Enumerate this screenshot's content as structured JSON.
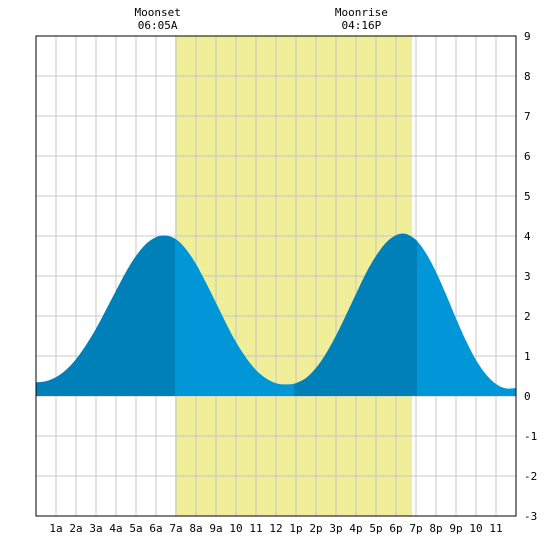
{
  "chart_data": {
    "type": "area",
    "title": "",
    "xlabel": "",
    "ylabel": "",
    "xlim": [
      0,
      24
    ],
    "ylim": [
      -3,
      9
    ],
    "grid": true,
    "x_ticks": [
      {
        "x": 1,
        "label": "1a"
      },
      {
        "x": 2,
        "label": "2a"
      },
      {
        "x": 3,
        "label": "3a"
      },
      {
        "x": 4,
        "label": "4a"
      },
      {
        "x": 5,
        "label": "5a"
      },
      {
        "x": 6,
        "label": "6a"
      },
      {
        "x": 7,
        "label": "7a"
      },
      {
        "x": 8,
        "label": "8a"
      },
      {
        "x": 9,
        "label": "9a"
      },
      {
        "x": 10,
        "label": "10"
      },
      {
        "x": 11,
        "label": "11"
      },
      {
        "x": 12,
        "label": "12"
      },
      {
        "x": 13,
        "label": "1p"
      },
      {
        "x": 14,
        "label": "2p"
      },
      {
        "x": 15,
        "label": "3p"
      },
      {
        "x": 16,
        "label": "4p"
      },
      {
        "x": 17,
        "label": "5p"
      },
      {
        "x": 18,
        "label": "6p"
      },
      {
        "x": 19,
        "label": "7p"
      },
      {
        "x": 20,
        "label": "8p"
      },
      {
        "x": 21,
        "label": "9p"
      },
      {
        "x": 22,
        "label": "10"
      },
      {
        "x": 23,
        "label": "11"
      }
    ],
    "y_ticks": [
      -3,
      -2,
      -1,
      0,
      1,
      2,
      3,
      4,
      5,
      6,
      7,
      8,
      9
    ],
    "series": [
      {
        "x": [
          0,
          0.5,
          1,
          1.5,
          2,
          2.5,
          3,
          3.5,
          4,
          4.5,
          5,
          5.5,
          6,
          6.5,
          7,
          7.5,
          8,
          8.5,
          9,
          9.5,
          10,
          10.5,
          11,
          11.5,
          12,
          12.5,
          13,
          13.5,
          14,
          14.5,
          15,
          15.5,
          16,
          16.5,
          17,
          17.5,
          18,
          18.5,
          19,
          19.5,
          20,
          20.5,
          21,
          21.5,
          22,
          22.5,
          23,
          23.5,
          24
        ],
        "y": [
          0.34,
          0.37,
          0.47,
          0.65,
          0.92,
          1.27,
          1.68,
          2.15,
          2.63,
          3.1,
          3.5,
          3.8,
          3.97,
          4.01,
          3.92,
          3.67,
          3.3,
          2.83,
          2.33,
          1.82,
          1.35,
          0.96,
          0.65,
          0.44,
          0.32,
          0.29,
          0.32,
          0.45,
          0.7,
          1.06,
          1.51,
          2.02,
          2.55,
          3.07,
          3.5,
          3.83,
          4.02,
          4.05,
          3.9,
          3.57,
          3.1,
          2.54,
          1.94,
          1.38,
          0.9,
          0.54,
          0.3,
          0.19,
          0.2
        ]
      }
    ],
    "daylight_band": {
      "start": 6.95,
      "end": 18.8
    },
    "dark_segments": [
      [
        0,
        6.95
      ],
      [
        12.9,
        19.05
      ]
    ],
    "moon_events": [
      {
        "x": 6.083,
        "label": "Moonset",
        "time": "06:05A"
      },
      {
        "x": 16.267,
        "label": "Moonrise",
        "time": "04:16P"
      }
    ],
    "colors": {
      "daylight": "#f0ee99",
      "water": "#0096d8",
      "water_dark": "#0080b8",
      "grid": "#c8c8c8",
      "background": "#ffffff",
      "frame": "#000000"
    }
  }
}
